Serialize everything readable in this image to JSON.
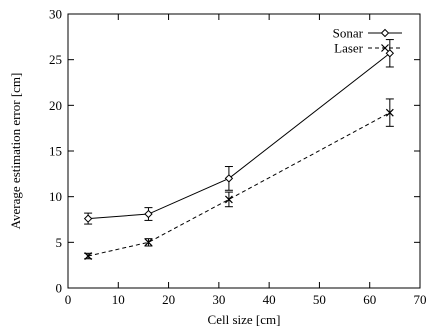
{
  "chart_data": {
    "type": "line",
    "title": "",
    "xlabel": "Cell size [cm]",
    "ylabel": "Average estimation error [cm]",
    "xlim": [
      0,
      70
    ],
    "ylim": [
      0,
      30
    ],
    "x_ticks": [
      0,
      10,
      20,
      30,
      40,
      50,
      60,
      70
    ],
    "y_ticks": [
      0,
      5,
      10,
      15,
      20,
      25,
      30
    ],
    "grid": false,
    "legend_position": "top-right",
    "series": [
      {
        "name": "Sonar",
        "marker": "diamond",
        "line_style": "solid",
        "x": [
          4,
          16,
          32,
          64
        ],
        "y": [
          7.6,
          8.1,
          12.0,
          25.7
        ],
        "error": [
          0.6,
          0.7,
          1.3,
          1.5
        ]
      },
      {
        "name": "Laser",
        "marker": "x",
        "line_style": "dashed",
        "x": [
          4,
          16,
          32,
          64
        ],
        "y": [
          3.5,
          5.0,
          9.7,
          19.2
        ],
        "error": [
          0.3,
          0.4,
          0.8,
          1.5
        ]
      }
    ]
  }
}
